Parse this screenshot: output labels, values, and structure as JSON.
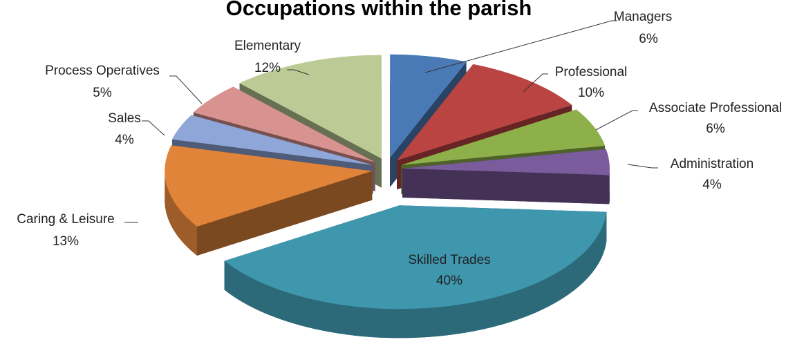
{
  "chart_data": {
    "type": "pie",
    "title": "Occupations within the parish",
    "categories": [
      "Managers",
      "Professional",
      "Associate Professional",
      "Administration",
      "Skilled Trades",
      "Caring & Leisure",
      "Sales",
      "Process Operatives",
      "Elementary"
    ],
    "values": [
      6,
      10,
      6,
      4,
      40,
      13,
      4,
      5,
      12
    ],
    "value_labels": [
      "6%",
      "10%",
      "6%",
      "4%",
      "40%",
      "13%",
      "4%",
      "5%",
      "12%"
    ],
    "colors": [
      "#4a7ab5",
      "#b94441",
      "#8db04a",
      "#7a5b9c",
      "#3f97ae",
      "#e0843a",
      "#8ea7d8",
      "#d89290",
      "#bccb95"
    ]
  }
}
